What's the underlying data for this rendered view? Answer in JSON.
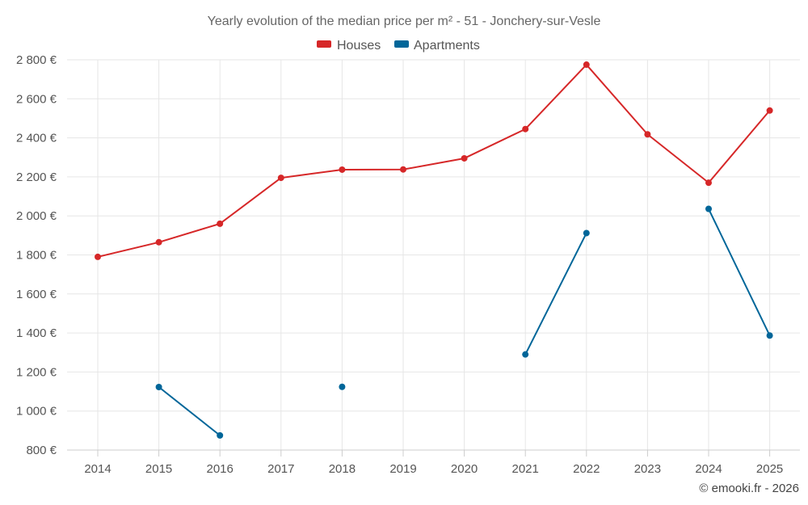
{
  "chart_data": {
    "type": "line",
    "title": "Yearly evolution of the median price per m² - 51 - Jonchery-sur-Vesle",
    "x": [
      "2014",
      "2015",
      "2016",
      "2017",
      "2018",
      "2019",
      "2020",
      "2021",
      "2022",
      "2023",
      "2024",
      "2025"
    ],
    "ylim": [
      800,
      2800
    ],
    "yticks": [
      800,
      1000,
      1200,
      1400,
      1600,
      1800,
      2000,
      2200,
      2400,
      2600,
      2800
    ],
    "ytick_labels": [
      "800 €",
      "1 000 €",
      "1 200 €",
      "1 400 €",
      "1 600 €",
      "1 800 €",
      "2 000 €",
      "2 200 €",
      "2 400 €",
      "2 600 €",
      "2 800 €"
    ],
    "grid": true,
    "legend_position": "top-center",
    "series": [
      {
        "name": "Houses",
        "color": "#d62728",
        "values": [
          1790,
          1865,
          1960,
          2195,
          2237,
          2238,
          2295,
          2445,
          2775,
          2418,
          2170,
          2540
        ]
      },
      {
        "name": "Apartments",
        "color": "#006699",
        "values": [
          null,
          1123,
          875,
          null,
          1124,
          null,
          null,
          1290,
          1912,
          null,
          2036,
          1387
        ]
      }
    ]
  },
  "credit": "© emooki.fr - 2026"
}
